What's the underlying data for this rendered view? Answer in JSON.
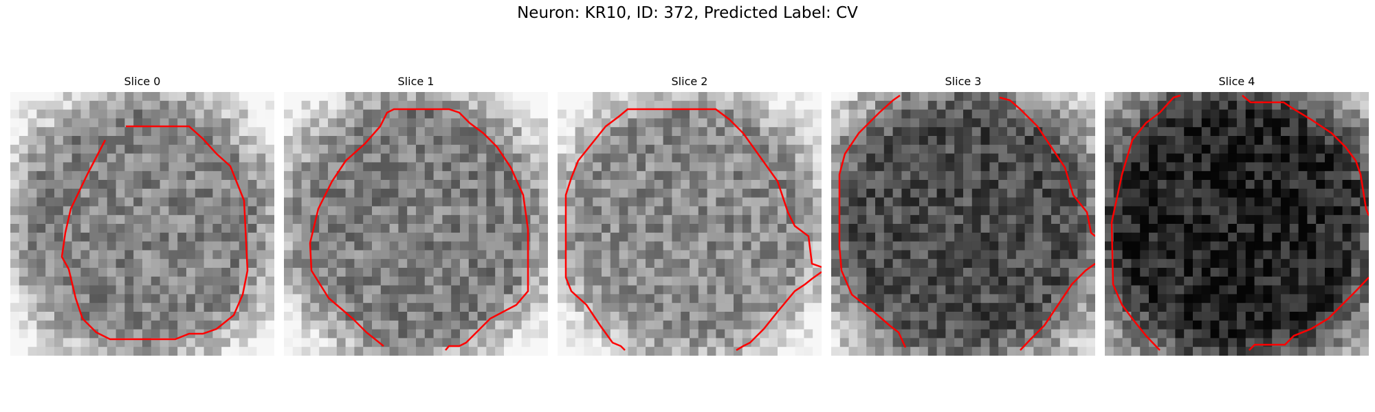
{
  "figure": {
    "title": "Neuron: KR10, ID: 372, Predicted Label: CV"
  },
  "panels": [
    {
      "title": "Slice 0",
      "brightness": 0.52
    },
    {
      "title": "Slice 1",
      "brightness": 0.5
    },
    {
      "title": "Slice 2",
      "brightness": 0.54
    },
    {
      "title": "Slice 3",
      "brightness": 0.3
    },
    {
      "title": "Slice 4",
      "brightness": 0.14
    }
  ],
  "colors": {
    "contour": "#ff0000",
    "background": "#ffffff"
  }
}
